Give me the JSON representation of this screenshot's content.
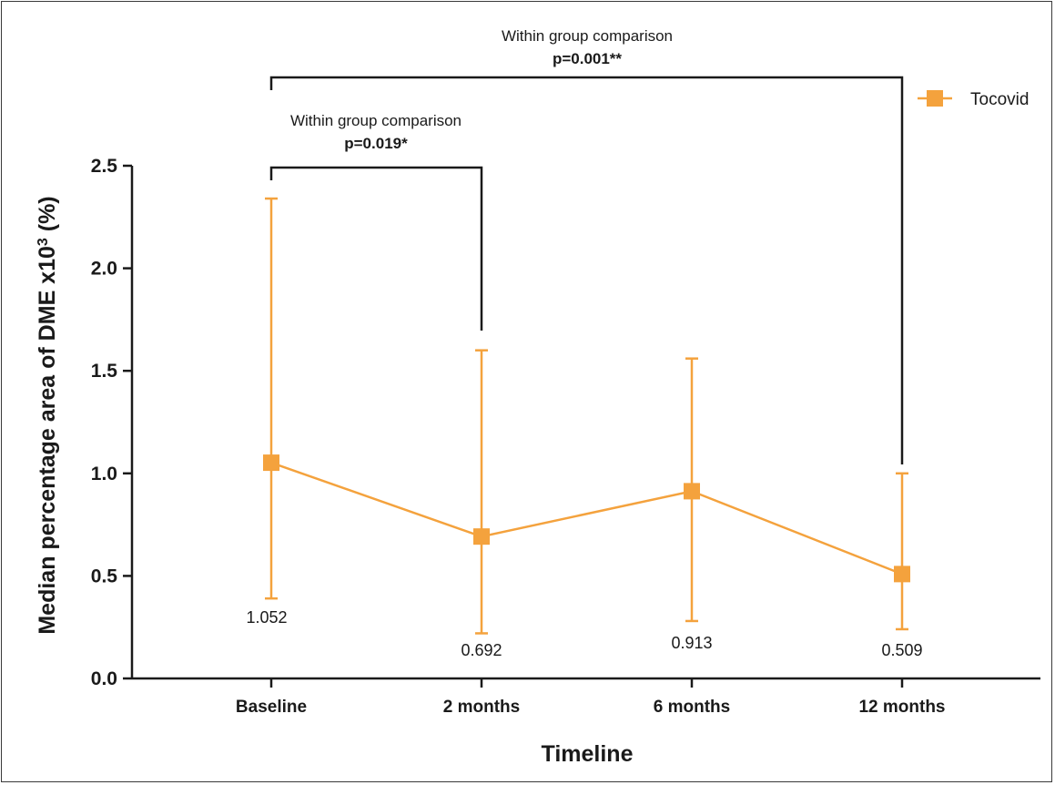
{
  "chart_data": {
    "type": "line",
    "xlabel": "Timeline",
    "ylabel": "Median percentage area of DME x10",
    "ylabel_sup": "3",
    "ylabel_suffix": " (%)",
    "ylim": [
      0,
      2.5
    ],
    "yticks": [
      "0.0",
      "0.5",
      "1.0",
      "1.5",
      "2.0",
      "2.5"
    ],
    "categories": [
      "Baseline",
      "2 months",
      "6 months",
      "12 months"
    ],
    "series": [
      {
        "name": "Tocovid",
        "color": "#f4a23d",
        "marker": "square",
        "values": [
          1.052,
          0.692,
          0.913,
          0.509
        ],
        "error_low": [
          0.39,
          0.22,
          0.28,
          0.24
        ],
        "error_high": [
          2.34,
          1.6,
          1.56,
          1.0
        ]
      }
    ],
    "data_labels": [
      "1.052",
      "0.692",
      "0.913",
      "0.509"
    ],
    "legend_position": "top-right",
    "grid": false,
    "annotations": [
      {
        "text": "Within group comparison",
        "p_value": "p=0.019*",
        "from_category": 0,
        "to_category": 1
      },
      {
        "text": "Within group comparison",
        "p_value": "p=0.001**",
        "from_category": 0,
        "to_category": 3
      }
    ]
  }
}
